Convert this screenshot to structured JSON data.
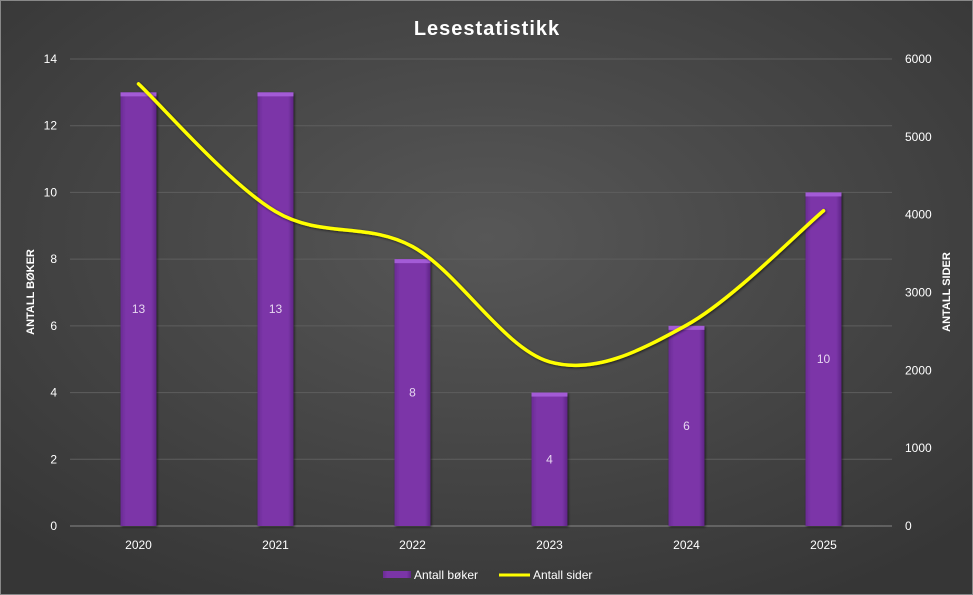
{
  "chart_data": {
    "type": "bar+line",
    "title": "Lesestatistikk",
    "categories": [
      "2020",
      "2021",
      "2022",
      "2023",
      "2024",
      "2025"
    ],
    "series": [
      {
        "name": "Antall bøker",
        "type": "bar",
        "axis": "left",
        "values": [
          13,
          13,
          8,
          4,
          6,
          10
        ],
        "color": "#7b35a8",
        "data_labels": true
      },
      {
        "name": "Antall sider",
        "type": "line",
        "axis": "right",
        "smooth": true,
        "values": [
          5680,
          4040,
          3590,
          2110,
          2580,
          4050
        ],
        "color": "#ffff00"
      }
    ],
    "ylabel_left": "ANTALL BØKER",
    "ylabel_right": "ANTALL SIDER",
    "ylim_left": [
      0,
      14
    ],
    "yticks_left": [
      "0",
      "2",
      "4",
      "6",
      "8",
      "10",
      "12",
      "14"
    ],
    "ylim_right": [
      0,
      6000
    ],
    "yticks_right": [
      "0",
      "1000",
      "2000",
      "3000",
      "4000",
      "5000",
      "6000"
    ],
    "grid": true,
    "legend": "bottom",
    "background": "#474747"
  }
}
